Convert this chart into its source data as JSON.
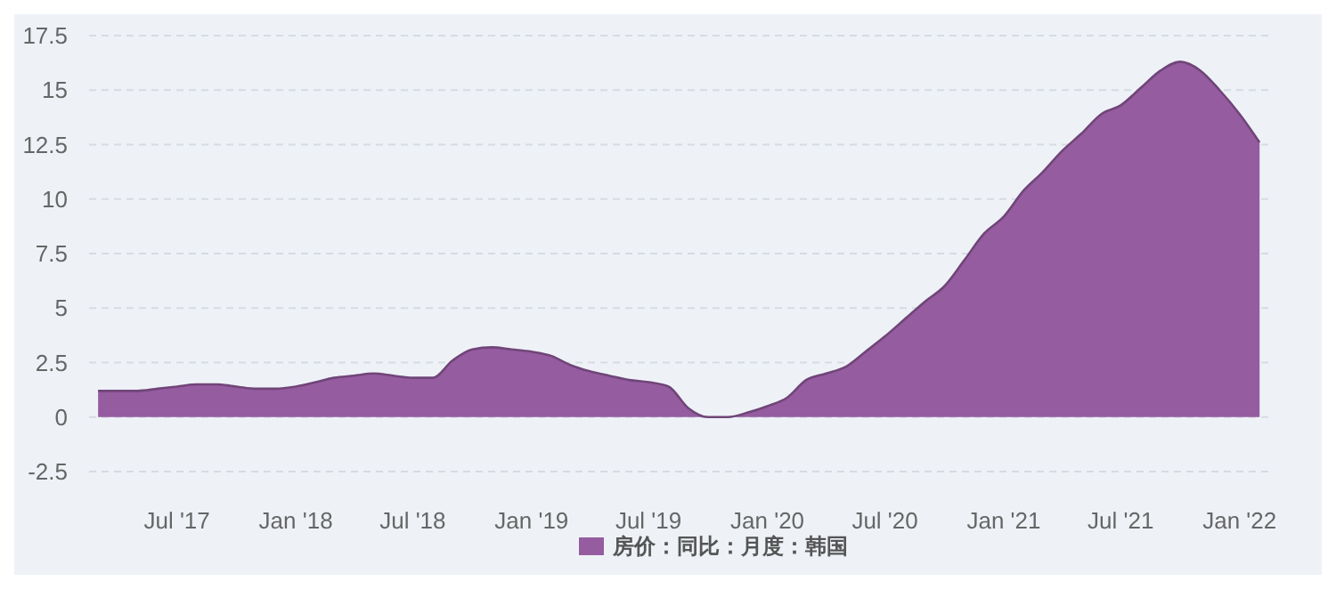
{
  "chart_data": {
    "type": "area",
    "x": [
      "2017-03",
      "2017-04",
      "2017-05",
      "2017-06",
      "2017-07",
      "2017-08",
      "2017-09",
      "2017-10",
      "2017-11",
      "2017-12",
      "2018-01",
      "2018-02",
      "2018-03",
      "2018-04",
      "2018-05",
      "2018-06",
      "2018-07",
      "2018-08",
      "2018-09",
      "2018-10",
      "2018-11",
      "2018-12",
      "2019-01",
      "2019-02",
      "2019-03",
      "2019-04",
      "2019-05",
      "2019-06",
      "2019-07",
      "2019-08",
      "2019-09",
      "2019-10",
      "2019-11",
      "2019-12",
      "2020-01",
      "2020-02",
      "2020-03",
      "2020-04",
      "2020-05",
      "2020-06",
      "2020-07",
      "2020-08",
      "2020-09",
      "2020-10",
      "2020-11",
      "2020-12",
      "2021-01",
      "2021-02",
      "2021-03",
      "2021-04",
      "2021-05",
      "2021-06",
      "2021-07",
      "2021-08",
      "2021-09",
      "2021-10",
      "2021-11",
      "2021-12",
      "2022-01",
      "2022-02"
    ],
    "series": [
      {
        "name": "房价：同比：月度：韩国",
        "color": "#955ca0",
        "values": [
          1.2,
          1.2,
          1.2,
          1.3,
          1.4,
          1.5,
          1.5,
          1.4,
          1.3,
          1.3,
          1.4,
          1.6,
          1.8,
          1.9,
          2.0,
          1.9,
          1.8,
          1.8,
          2.6,
          3.1,
          3.2,
          3.1,
          3.0,
          2.8,
          2.4,
          2.1,
          1.9,
          1.7,
          1.6,
          1.4,
          0.4,
          0,
          0,
          0.2,
          0.5,
          0.9,
          1.7,
          2.0,
          2.3,
          3.0,
          3.7,
          4.5,
          5.3,
          6.0,
          7.2,
          8.4,
          9.2,
          10.4,
          11.2,
          12.2,
          13.0,
          13.9,
          14.3,
          15.1,
          15.9,
          16.3,
          15.9,
          15.0,
          13.9,
          12.6
        ]
      }
    ],
    "xlim": [
      "2017-02-15",
      "2022-02-20"
    ],
    "xticks": [
      {
        "value": "2017-07",
        "label": "Jul '17"
      },
      {
        "value": "2018-01",
        "label": "Jan '18"
      },
      {
        "value": "2018-07",
        "label": "Jul '18"
      },
      {
        "value": "2019-01",
        "label": "Jan '19"
      },
      {
        "value": "2019-07",
        "label": "Jul '19"
      },
      {
        "value": "2020-01",
        "label": "Jan '20"
      },
      {
        "value": "2020-07",
        "label": "Jul '20"
      },
      {
        "value": "2021-01",
        "label": "Jan '21"
      },
      {
        "value": "2021-07",
        "label": "Jul '21"
      },
      {
        "value": "2022-01",
        "label": "Jan '22"
      }
    ],
    "ylim": [
      -2.5,
      17.5
    ],
    "yticks": [
      -2.5,
      0,
      2.5,
      5,
      7.5,
      10,
      12.5,
      15,
      17.5
    ],
    "grid": "y",
    "legend": "bottom"
  }
}
